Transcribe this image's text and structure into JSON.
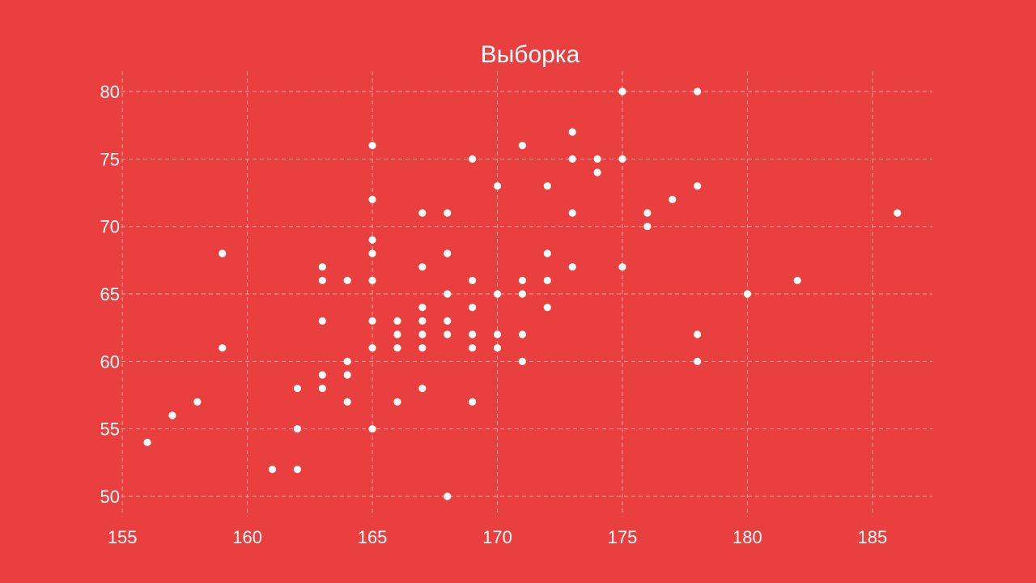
{
  "colors": {
    "background": "#E93F3E",
    "point": "#FFFFFF",
    "grid": "#F5A5A4",
    "text": "#FFFFFF"
  },
  "chart_data": {
    "type": "scatter",
    "title": "Выборка",
    "xlabel": "",
    "ylabel": "",
    "xlim": [
      154.8,
      187.4
    ],
    "ylim": [
      48.5,
      81.5
    ],
    "x_ticks": [
      155,
      160,
      165,
      170,
      175,
      180,
      185
    ],
    "y_ticks": [
      50,
      55,
      60,
      65,
      70,
      75,
      80
    ],
    "grid": true,
    "grid_style": "dashed",
    "legend": "none",
    "points": [
      [
        156,
        54
      ],
      [
        157,
        56
      ],
      [
        158,
        57
      ],
      [
        159,
        68
      ],
      [
        159,
        61
      ],
      [
        161,
        52
      ],
      [
        162,
        58
      ],
      [
        162,
        55
      ],
      [
        162,
        52
      ],
      [
        163,
        67
      ],
      [
        163,
        66
      ],
      [
        163,
        63
      ],
      [
        163,
        59
      ],
      [
        163,
        58
      ],
      [
        164,
        66
      ],
      [
        164,
        60
      ],
      [
        164,
        59
      ],
      [
        164,
        57
      ],
      [
        165,
        76
      ],
      [
        165,
        72
      ],
      [
        165,
        69
      ],
      [
        165,
        68
      ],
      [
        165,
        66
      ],
      [
        165,
        63
      ],
      [
        165,
        61
      ],
      [
        165,
        55
      ],
      [
        166,
        63
      ],
      [
        166,
        62
      ],
      [
        166,
        61
      ],
      [
        166,
        57
      ],
      [
        167,
        71
      ],
      [
        167,
        67
      ],
      [
        167,
        64
      ],
      [
        167,
        63
      ],
      [
        167,
        62
      ],
      [
        167,
        61
      ],
      [
        167,
        58
      ],
      [
        168,
        71
      ],
      [
        168,
        68
      ],
      [
        168,
        65
      ],
      [
        168,
        63
      ],
      [
        168,
        62
      ],
      [
        168,
        50
      ],
      [
        169,
        75
      ],
      [
        169,
        66
      ],
      [
        169,
        64
      ],
      [
        169,
        62
      ],
      [
        169,
        61
      ],
      [
        169,
        57
      ],
      [
        170,
        73
      ],
      [
        170,
        65
      ],
      [
        170,
        62
      ],
      [
        170,
        61
      ],
      [
        171,
        76
      ],
      [
        171,
        66
      ],
      [
        171,
        65
      ],
      [
        171,
        62
      ],
      [
        171,
        60
      ],
      [
        172,
        73
      ],
      [
        172,
        68
      ],
      [
        172,
        66
      ],
      [
        172,
        64
      ],
      [
        173,
        77
      ],
      [
        173,
        75
      ],
      [
        173,
        71
      ],
      [
        173,
        67
      ],
      [
        174,
        75
      ],
      [
        174,
        74
      ],
      [
        175,
        80
      ],
      [
        175,
        75
      ],
      [
        175,
        67
      ],
      [
        176,
        71
      ],
      [
        176,
        70
      ],
      [
        177,
        72
      ],
      [
        178,
        80
      ],
      [
        178,
        73
      ],
      [
        178,
        62
      ],
      [
        178,
        60
      ],
      [
        180,
        65
      ],
      [
        182,
        66
      ],
      [
        186,
        71
      ]
    ]
  }
}
